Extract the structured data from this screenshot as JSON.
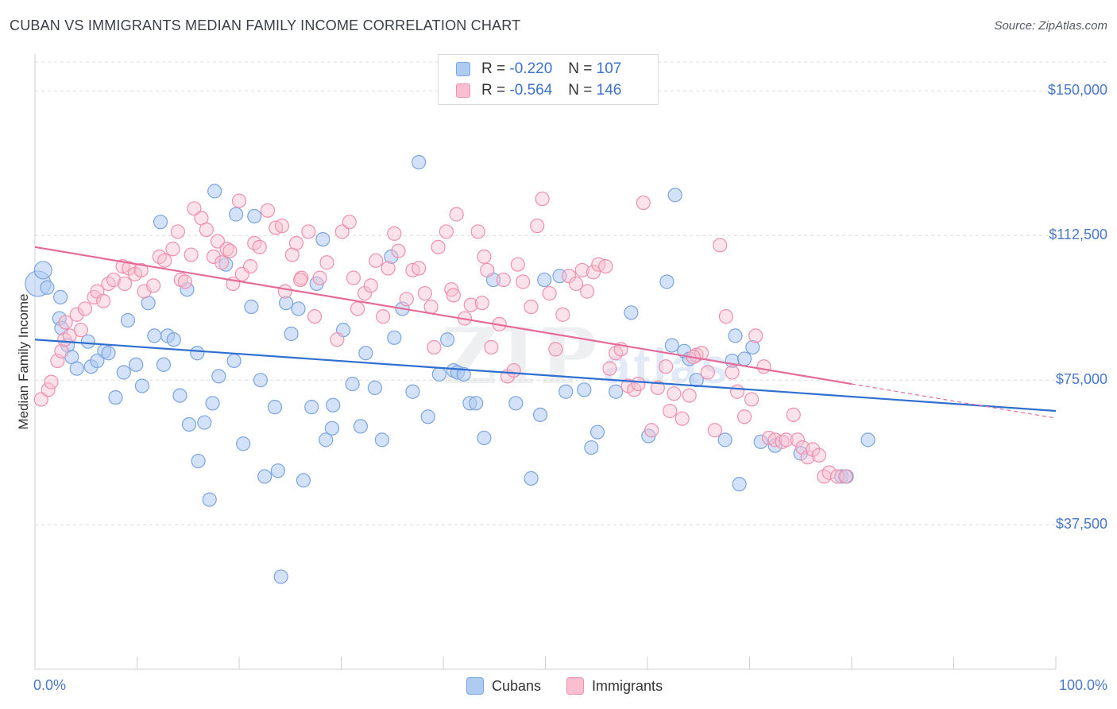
{
  "title": "CUBAN VS IMMIGRANTS MEDIAN FAMILY INCOME CORRELATION CHART",
  "source": "Source: ZipAtlas.com",
  "watermark": {
    "zip": "ZIP",
    "atlas": "atlas"
  },
  "legend": {
    "r_label": "R = ",
    "n_label": "N = ",
    "entries": [
      {
        "name": "Cubans",
        "r": "-0.220",
        "n": "107",
        "fill": "#aecbf2",
        "stroke": "#7aa5e0"
      },
      {
        "name": "Immigrants",
        "r": "-0.564",
        "n": "146",
        "fill": "#f9bfd1",
        "stroke": "#ee90ae"
      }
    ]
  },
  "chart_data": {
    "type": "scatter",
    "xlabel": "",
    "ylabel": "Median Family Income",
    "xlim": [
      0,
      100
    ],
    "ylim": [
      0,
      157500
    ],
    "x_tick_labels": [
      "0.0%",
      "100.0%"
    ],
    "y_ticks": [
      {
        "value": 37500,
        "label": "$37,500"
      },
      {
        "value": 75000,
        "label": "$75,000"
      },
      {
        "value": 112500,
        "label": "$112,500"
      },
      {
        "value": 150000,
        "label": "$150,000"
      }
    ],
    "grid": "horizontal dashed",
    "colors": {
      "cubans_line": "#2f6fcf",
      "immigrants_line": "#e56b98"
    },
    "series": [
      {
        "name": "Cubans",
        "trend": {
          "x1": 0,
          "y1": 85500,
          "x2": 100,
          "y2": 67000
        },
        "points": [
          [
            0.3,
            100000
          ],
          [
            0.8,
            103500
          ],
          [
            1.2,
            99000
          ],
          [
            2.4,
            91000
          ],
          [
            2.5,
            96500
          ],
          [
            2.6,
            88500
          ],
          [
            3.2,
            84000
          ],
          [
            3.6,
            81000
          ],
          [
            4.1,
            78000
          ],
          [
            5.2,
            85000
          ],
          [
            5.5,
            78500
          ],
          [
            6.8,
            82500
          ],
          [
            6.1,
            80000
          ],
          [
            7.2,
            82000
          ],
          [
            7.9,
            70500
          ],
          [
            8.7,
            77000
          ],
          [
            9.1,
            90500
          ],
          [
            9.9,
            79000
          ],
          [
            10.5,
            73500
          ],
          [
            11.1,
            95000
          ],
          [
            11.7,
            86500
          ],
          [
            12.3,
            116000
          ],
          [
            12.6,
            79000
          ],
          [
            13.0,
            86500
          ],
          [
            13.6,
            85500
          ],
          [
            14.2,
            71000
          ],
          [
            14.9,
            98500
          ],
          [
            15.1,
            63500
          ],
          [
            15.9,
            82000
          ],
          [
            16.0,
            54000
          ],
          [
            16.6,
            64000
          ],
          [
            17.1,
            44000
          ],
          [
            17.4,
            69000
          ],
          [
            17.6,
            124000
          ],
          [
            18.0,
            76000
          ],
          [
            18.7,
            105000
          ],
          [
            19.5,
            80000
          ],
          [
            19.7,
            118000
          ],
          [
            20.4,
            58500
          ],
          [
            21.2,
            94000
          ],
          [
            21.5,
            117500
          ],
          [
            22.1,
            75000
          ],
          [
            22.5,
            50000
          ],
          [
            23.5,
            68000
          ],
          [
            23.8,
            51500
          ],
          [
            24.1,
            24000
          ],
          [
            24.6,
            95000
          ],
          [
            25.1,
            87000
          ],
          [
            25.8,
            93500
          ],
          [
            26.3,
            49000
          ],
          [
            27.1,
            68000
          ],
          [
            27.6,
            100000
          ],
          [
            28.2,
            111500
          ],
          [
            28.5,
            59500
          ],
          [
            29.1,
            62500
          ],
          [
            29.2,
            68500
          ],
          [
            30.2,
            88000
          ],
          [
            31.1,
            74000
          ],
          [
            31.9,
            63000
          ],
          [
            32.4,
            82000
          ],
          [
            33.3,
            73000
          ],
          [
            34.0,
            59500
          ],
          [
            34.9,
            107000
          ],
          [
            35.2,
            86000
          ],
          [
            36.0,
            93500
          ],
          [
            37.0,
            72000
          ],
          [
            37.6,
            131500
          ],
          [
            38.5,
            65500
          ],
          [
            39.6,
            76500
          ],
          [
            40.4,
            85500
          ],
          [
            41.0,
            77500
          ],
          [
            41.4,
            77000
          ],
          [
            42.0,
            76500
          ],
          [
            42.6,
            69000
          ],
          [
            43.2,
            69000
          ],
          [
            44.0,
            60000
          ],
          [
            44.9,
            101000
          ],
          [
            47.1,
            69000
          ],
          [
            48.6,
            49500
          ],
          [
            49.5,
            66000
          ],
          [
            49.9,
            101000
          ],
          [
            51.4,
            102000
          ],
          [
            52.0,
            72000
          ],
          [
            53.8,
            72500
          ],
          [
            54.5,
            57500
          ],
          [
            55.1,
            61500
          ],
          [
            56.9,
            72000
          ],
          [
            58.4,
            92500
          ],
          [
            60.1,
            60500
          ],
          [
            61.9,
            100500
          ],
          [
            62.7,
            123000
          ],
          [
            62.4,
            84000
          ],
          [
            63.6,
            82500
          ],
          [
            64.1,
            80500
          ],
          [
            64.8,
            75000
          ],
          [
            67.6,
            59500
          ],
          [
            68.3,
            80000
          ],
          [
            68.6,
            86500
          ],
          [
            69.5,
            80500
          ],
          [
            70.3,
            83500
          ],
          [
            71.1,
            59000
          ],
          [
            72.5,
            58000
          ],
          [
            75.0,
            56000
          ],
          [
            79.0,
            50000
          ],
          [
            79.5,
            50000
          ],
          [
            81.6,
            59500
          ],
          [
            69.0,
            48000
          ]
        ]
      },
      {
        "name": "Immigrants",
        "trend": {
          "x1": 0,
          "y1": 109500,
          "x2": 80,
          "y2": 74000
        },
        "points": [
          [
            0.6,
            70000
          ],
          [
            1.3,
            72500
          ],
          [
            1.6,
            74500
          ],
          [
            2.2,
            80000
          ],
          [
            2.6,
            82500
          ],
          [
            2.9,
            85500
          ],
          [
            3.0,
            90000
          ],
          [
            3.4,
            86500
          ],
          [
            4.1,
            92000
          ],
          [
            4.5,
            88000
          ],
          [
            4.9,
            93500
          ],
          [
            5.8,
            96500
          ],
          [
            6.1,
            98000
          ],
          [
            6.7,
            95500
          ],
          [
            7.2,
            100000
          ],
          [
            7.7,
            101000
          ],
          [
            8.6,
            104500
          ],
          [
            8.8,
            100000
          ],
          [
            9.2,
            104000
          ],
          [
            9.8,
            102500
          ],
          [
            10.4,
            103500
          ],
          [
            10.7,
            98000
          ],
          [
            11.6,
            99500
          ],
          [
            12.2,
            107000
          ],
          [
            12.7,
            106000
          ],
          [
            13.5,
            109000
          ],
          [
            14.0,
            113500
          ],
          [
            14.3,
            101000
          ],
          [
            14.7,
            100500
          ],
          [
            15.3,
            107500
          ],
          [
            15.6,
            119500
          ],
          [
            16.3,
            117000
          ],
          [
            16.8,
            114000
          ],
          [
            17.5,
            107000
          ],
          [
            17.9,
            111000
          ],
          [
            18.3,
            105500
          ],
          [
            18.8,
            109000
          ],
          [
            19.1,
            108500
          ],
          [
            19.4,
            100000
          ],
          [
            20.0,
            121500
          ],
          [
            20.3,
            102500
          ],
          [
            21.1,
            104500
          ],
          [
            21.5,
            110500
          ],
          [
            22.0,
            109500
          ],
          [
            22.8,
            119000
          ],
          [
            23.6,
            114500
          ],
          [
            24.2,
            115000
          ],
          [
            24.5,
            98000
          ],
          [
            25.2,
            107500
          ],
          [
            25.6,
            110500
          ],
          [
            26.1,
            101500
          ],
          [
            26.8,
            113500
          ],
          [
            27.4,
            91500
          ],
          [
            27.9,
            101500
          ],
          [
            28.6,
            105500
          ],
          [
            29.6,
            85500
          ],
          [
            30.1,
            113500
          ],
          [
            30.8,
            116000
          ],
          [
            31.2,
            101500
          ],
          [
            31.6,
            93500
          ],
          [
            32.3,
            97500
          ],
          [
            32.9,
            99500
          ],
          [
            33.4,
            106000
          ],
          [
            34.1,
            91500
          ],
          [
            34.6,
            104000
          ],
          [
            35.2,
            113000
          ],
          [
            35.6,
            108500
          ],
          [
            36.4,
            96000
          ],
          [
            37.0,
            103500
          ],
          [
            37.6,
            104000
          ],
          [
            38.2,
            97500
          ],
          [
            38.8,
            94000
          ],
          [
            39.1,
            83500
          ],
          [
            39.5,
            109500
          ],
          [
            40.3,
            113500
          ],
          [
            40.8,
            98500
          ],
          [
            41.3,
            118000
          ],
          [
            42.1,
            91000
          ],
          [
            42.7,
            94500
          ],
          [
            43.4,
            113500
          ],
          [
            44.0,
            107000
          ],
          [
            44.3,
            103500
          ],
          [
            44.7,
            83500
          ],
          [
            45.5,
            89500
          ],
          [
            45.9,
            101000
          ],
          [
            46.3,
            76000
          ],
          [
            46.9,
            77500
          ],
          [
            47.3,
            105000
          ],
          [
            47.8,
            100500
          ],
          [
            48.6,
            94000
          ],
          [
            49.2,
            115000
          ],
          [
            49.7,
            122000
          ],
          [
            50.4,
            97500
          ],
          [
            51.0,
            83000
          ],
          [
            51.7,
            92000
          ],
          [
            52.3,
            102000
          ],
          [
            53.0,
            100000
          ],
          [
            53.6,
            103500
          ],
          [
            54.1,
            98000
          ],
          [
            54.7,
            103000
          ],
          [
            55.2,
            105000
          ],
          [
            55.9,
            104500
          ],
          [
            56.3,
            78000
          ],
          [
            56.9,
            82000
          ],
          [
            57.4,
            83000
          ],
          [
            58.1,
            73500
          ],
          [
            58.7,
            72500
          ],
          [
            59.1,
            74000
          ],
          [
            59.6,
            121000
          ],
          [
            60.4,
            62000
          ],
          [
            61.0,
            73000
          ],
          [
            61.8,
            78500
          ],
          [
            62.2,
            67000
          ],
          [
            62.6,
            71500
          ],
          [
            63.4,
            65000
          ],
          [
            64.1,
            71000
          ],
          [
            64.8,
            81500
          ],
          [
            65.3,
            82000
          ],
          [
            65.9,
            77000
          ],
          [
            66.6,
            62000
          ],
          [
            67.1,
            110000
          ],
          [
            67.7,
            91500
          ],
          [
            68.3,
            77000
          ],
          [
            68.8,
            72000
          ],
          [
            69.5,
            65500
          ],
          [
            70.2,
            70000
          ],
          [
            70.6,
            86500
          ],
          [
            71.4,
            78500
          ],
          [
            71.9,
            60000
          ],
          [
            72.5,
            59500
          ],
          [
            73.2,
            59000
          ],
          [
            73.6,
            59500
          ],
          [
            74.3,
            66000
          ],
          [
            74.7,
            59500
          ],
          [
            75.2,
            57500
          ],
          [
            75.7,
            55000
          ],
          [
            76.2,
            57000
          ],
          [
            76.8,
            55500
          ],
          [
            77.3,
            50000
          ],
          [
            77.8,
            51000
          ],
          [
            78.6,
            50000
          ],
          [
            79.4,
            50000
          ],
          [
            26.0,
            101000
          ],
          [
            41.0,
            97000
          ],
          [
            43.8,
            95000
          ],
          [
            64.5,
            81000
          ]
        ]
      }
    ]
  }
}
